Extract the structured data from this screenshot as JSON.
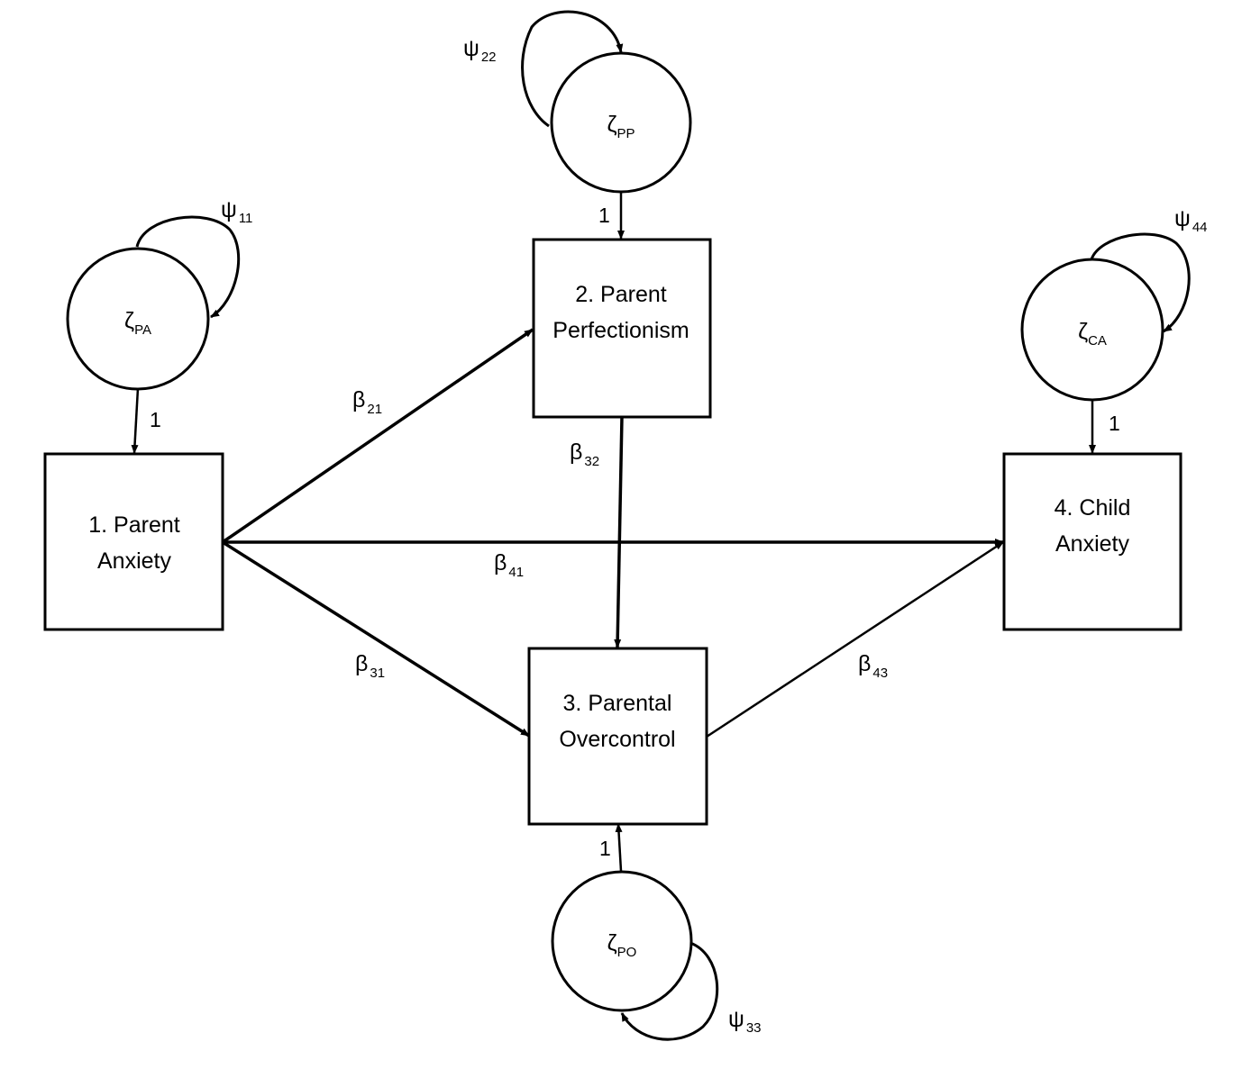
{
  "nodes": {
    "parent_anxiety": [
      "1. Parent",
      "Anxiety"
    ],
    "parent_perfectionism": [
      "2. Parent",
      "Perfectionism"
    ],
    "parental_overcontrol": [
      "3. Parental",
      "Overcontrol"
    ],
    "child_anxiety": [
      "4. Child",
      "Anxiety"
    ]
  },
  "disturbances": {
    "pa": {
      "symbol": "ζ",
      "sub": "PA"
    },
    "pp": {
      "symbol": "ζ",
      "sub": "PP"
    },
    "po": {
      "symbol": "ζ",
      "sub": "PO"
    },
    "ca": {
      "symbol": "ζ",
      "sub": "CA"
    }
  },
  "variances": {
    "psi11": {
      "symbol": "ψ",
      "sub": "11"
    },
    "psi22": {
      "symbol": "ψ",
      "sub": "22"
    },
    "psi33": {
      "symbol": "ψ",
      "sub": "33"
    },
    "psi44": {
      "symbol": "ψ",
      "sub": "44"
    }
  },
  "paths": {
    "b21": {
      "symbol": "β",
      "sub": "21"
    },
    "b31": {
      "symbol": "β",
      "sub": "31"
    },
    "b32": {
      "symbol": "β",
      "sub": "32"
    },
    "b41": {
      "symbol": "β",
      "sub": "41"
    },
    "b43": {
      "symbol": "β",
      "sub": "43"
    }
  },
  "loadings": {
    "pa": "1",
    "pp": "1",
    "po": "1",
    "ca": "1"
  }
}
